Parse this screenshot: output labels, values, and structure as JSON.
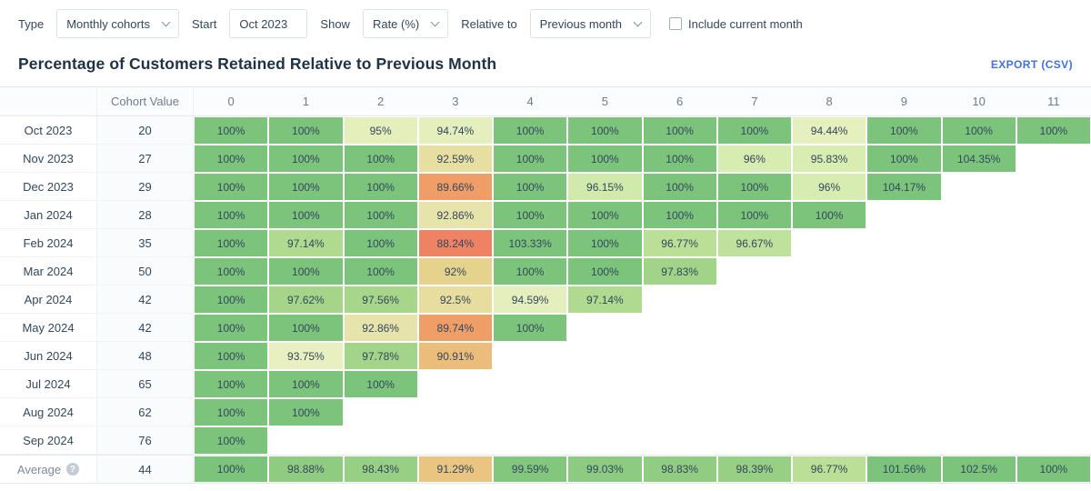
{
  "toolbar": {
    "type_label": "Type",
    "type_value": "Monthly cohorts",
    "start_label": "Start",
    "start_value": "Oct 2023",
    "show_label": "Show",
    "show_value": "Rate (%)",
    "relative_label": "Relative to",
    "relative_value": "Previous month",
    "include_label": "Include current month",
    "include_checked": false
  },
  "header": {
    "title": "Percentage of Customers Retained Relative to Previous Month",
    "export_label": "EXPORT (CSV)"
  },
  "colors": {
    "accent_blue": "#4272d9",
    "title_text": "#213343",
    "cell_text": "#33475b",
    "header_text": "#6b7c8d",
    "border": "#e5e9ed",
    "scale": [
      [
        88,
        "#EF7E62"
      ],
      [
        90,
        "#F0A369"
      ],
      [
        91,
        "#ECBE7C"
      ],
      [
        92,
        "#E5D38D"
      ],
      [
        93.5,
        "#E9F0C2"
      ],
      [
        95,
        "#E4EFBC"
      ],
      [
        96,
        "#D7ECB0"
      ],
      [
        97,
        "#B2DB90"
      ],
      [
        98,
        "#9ED287"
      ],
      [
        100,
        "#7CC47C"
      ]
    ]
  },
  "chart_data": {
    "type": "heatmap",
    "title": "Percentage of Customers Retained Relative to Previous Month",
    "corner_label": "",
    "cohort_col_header": "Cohort Value",
    "periods": [
      "0",
      "1",
      "2",
      "3",
      "4",
      "5",
      "6",
      "7",
      "8",
      "9",
      "10",
      "11"
    ],
    "value_suffix": "%",
    "rows": [
      {
        "label": "Oct 2023",
        "cohort": "20",
        "values": [
          100,
          100,
          95,
          94.74,
          100,
          100,
          100,
          100,
          94.44,
          100,
          100,
          100
        ]
      },
      {
        "label": "Nov 2023",
        "cohort": "27",
        "values": [
          100,
          100,
          100,
          92.59,
          100,
          100,
          100,
          96,
          95.83,
          100,
          104.35
        ]
      },
      {
        "label": "Dec 2023",
        "cohort": "29",
        "values": [
          100,
          100,
          100,
          89.66,
          100,
          96.15,
          100,
          100,
          96,
          104.17
        ]
      },
      {
        "label": "Jan 2024",
        "cohort": "28",
        "values": [
          100,
          100,
          100,
          92.86,
          100,
          100,
          100,
          100,
          100
        ]
      },
      {
        "label": "Feb 2024",
        "cohort": "35",
        "values": [
          100,
          97.14,
          100,
          88.24,
          103.33,
          100,
          96.77,
          96.67
        ]
      },
      {
        "label": "Mar 2024",
        "cohort": "50",
        "values": [
          100,
          100,
          100,
          92,
          100,
          100,
          97.83
        ]
      },
      {
        "label": "Apr 2024",
        "cohort": "42",
        "values": [
          100,
          97.62,
          97.56,
          92.5,
          94.59,
          97.14
        ]
      },
      {
        "label": "May 2024",
        "cohort": "42",
        "values": [
          100,
          100,
          92.86,
          89.74,
          100
        ]
      },
      {
        "label": "Jun 2024",
        "cohort": "48",
        "values": [
          100,
          93.75,
          97.78,
          90.91
        ]
      },
      {
        "label": "Jul 2024",
        "cohort": "65",
        "values": [
          100,
          100,
          100
        ]
      },
      {
        "label": "Aug 2024",
        "cohort": "62",
        "values": [
          100,
          100
        ]
      },
      {
        "label": "Sep 2024",
        "cohort": "76",
        "values": [
          100
        ]
      }
    ],
    "average": {
      "label": "Average",
      "help_icon": "?",
      "cohort": "44",
      "values": [
        100,
        98.88,
        98.43,
        91.29,
        99.59,
        99.03,
        98.83,
        98.39,
        96.77,
        101.56,
        102.5,
        100
      ]
    }
  }
}
